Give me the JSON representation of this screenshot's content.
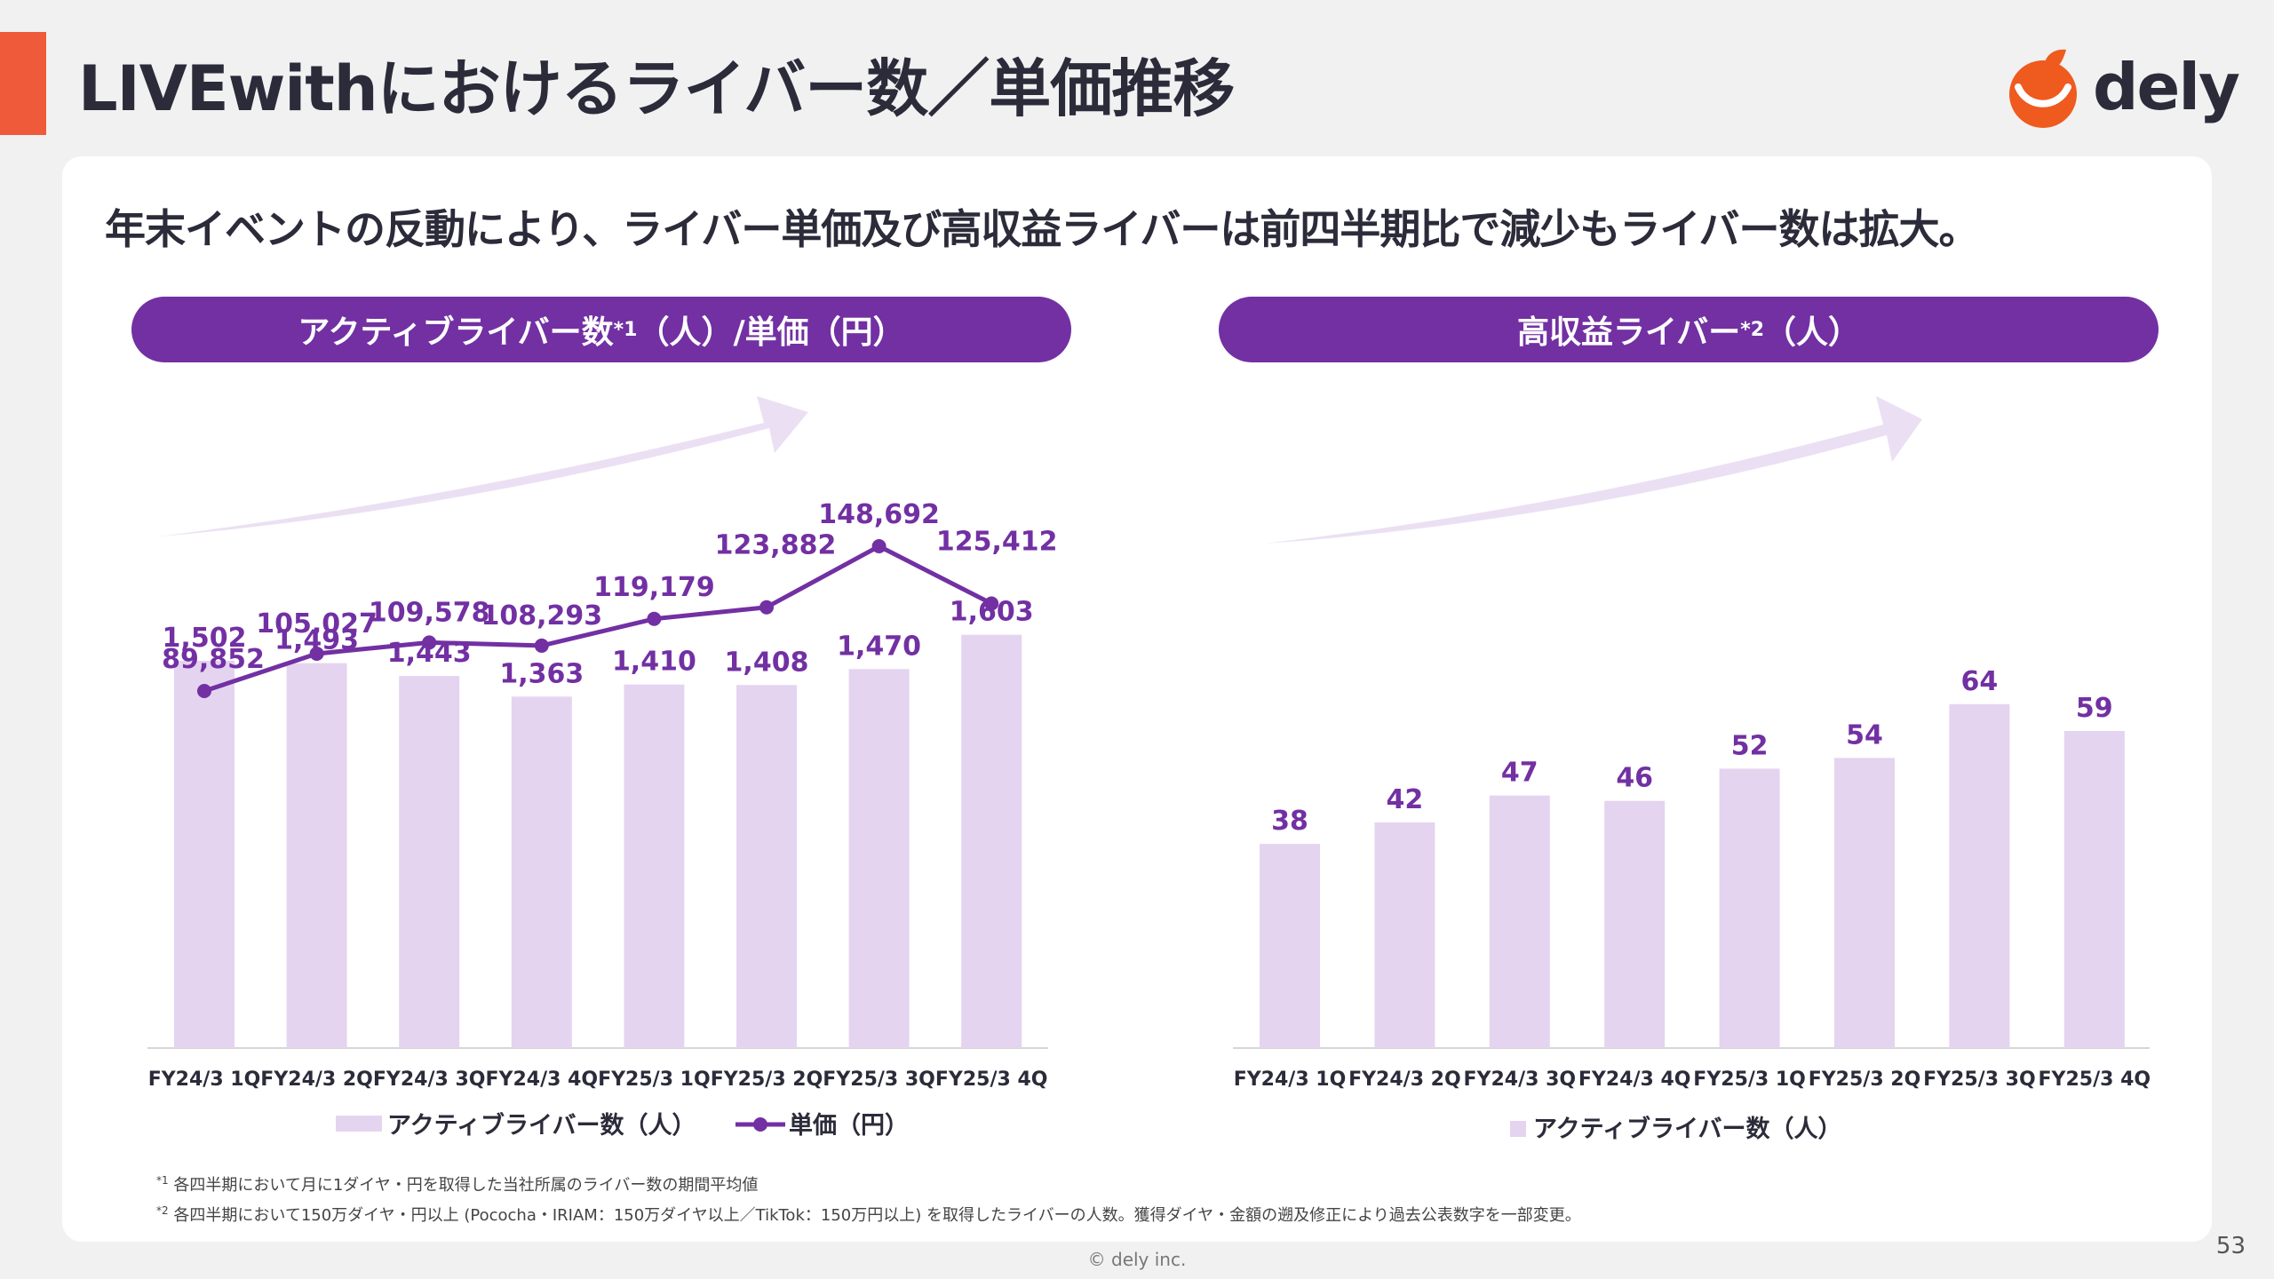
{
  "header": {
    "title": "LIVEwithにおけるライバー数／単価推移",
    "logo_text": "dely"
  },
  "subtitle": "年末イベントの反動により、ライバー単価及び高収益ライバーは前四半期比で減少もライバー数は拡大。",
  "panels": {
    "left_title": "アクティブライバー数",
    "left_title_sup": "*1",
    "left_title_suffix": "（人）/単価（円）",
    "right_title": "高収益ライバー",
    "right_title_sup": "*2",
    "right_title_suffix": "（人）"
  },
  "chart_data": [
    {
      "type": "bar+line",
      "categories": [
        "FY24/3 1Q",
        "FY24/3 2Q",
        "FY24/3 3Q",
        "FY24/3 4Q",
        "FY25/3 1Q",
        "FY25/3 2Q",
        "FY25/3 3Q",
        "FY25/3 4Q"
      ],
      "series": [
        {
          "name": "アクティブライバー数（人）",
          "kind": "bar",
          "values": [
            1502,
            1493,
            1443,
            1363,
            1410,
            1408,
            1470,
            1603
          ],
          "labels": [
            "1,502",
            "1,493",
            "1,443",
            "1,363",
            "1,410",
            "1,408",
            "1,470",
            "1,603"
          ],
          "color": "#e4d4f0"
        },
        {
          "name": "単価（円）",
          "kind": "line",
          "values": [
            89852,
            105027,
            109578,
            108293,
            119179,
            123882,
            148692,
            125412
          ],
          "labels": [
            "89,852",
            "105,027",
            "109,578",
            "108,293",
            "119,179",
            "123,882",
            "148,692",
            "125,412"
          ],
          "color": "#7230a3"
        }
      ],
      "legend": [
        "アクティブライバー数（人）",
        "単価（円）"
      ],
      "legend_position": "bottom"
    },
    {
      "type": "bar",
      "categories": [
        "FY24/3 1Q",
        "FY24/3 2Q",
        "FY24/3 3Q",
        "FY24/3 4Q",
        "FY25/3 1Q",
        "FY25/3 2Q",
        "FY25/3 3Q",
        "FY25/3 4Q"
      ],
      "series": [
        {
          "name": "アクティブライバー数（人）",
          "kind": "bar",
          "values": [
            38,
            42,
            47,
            46,
            52,
            54,
            64,
            59
          ],
          "labels": [
            "38",
            "42",
            "47",
            "46",
            "52",
            "54",
            "64",
            "59"
          ],
          "color": "#e4d4f0"
        }
      ],
      "legend": [
        "アクティブライバー数（人）"
      ],
      "legend_position": "bottom"
    }
  ],
  "footnotes": {
    "fn1_mark": "*1",
    "fn1": " 各四半期において月に1ダイヤ・円を取得した当社所属のライバー数の期間平均値",
    "fn2_mark": "*2",
    "fn2": " 各四半期において150万ダイヤ・円以上 (Pococha・IRIAM：150万ダイヤ以上／TikTok：150万円以上) を取得したライバーの人数。獲得ダイヤ・金額の遡及修正により過去公表数字を一部変更。"
  },
  "copyright": "© dely inc.",
  "page_number": "53",
  "colors": {
    "accent": "#ef5a3a",
    "purple": "#7230a3",
    "bar": "#e4d4f0",
    "arrow": "#ebe0f3"
  }
}
